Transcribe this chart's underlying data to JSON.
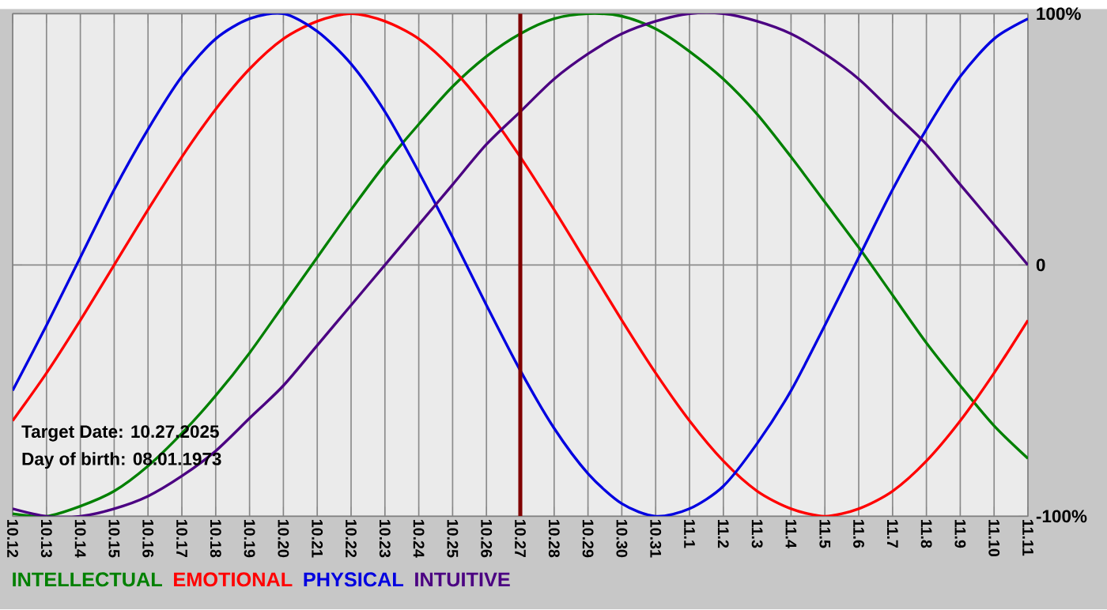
{
  "chart_data": {
    "type": "line",
    "categories": [
      "10.12",
      "10.13",
      "10.14",
      "10.15",
      "10.16",
      "10.17",
      "10.18",
      "10.19",
      "10.20",
      "10.21",
      "10.22",
      "10.23",
      "10.24",
      "10.25",
      "10.26",
      "10.27",
      "10.28",
      "10.29",
      "10.30",
      "10.31",
      "11.1",
      "11.2",
      "11.3",
      "11.4",
      "11.5",
      "11.6",
      "11.7",
      "11.8",
      "11.9",
      "11.10",
      "11.11"
    ],
    "series": [
      {
        "name": "INTELLECTUAL",
        "color": "#008000",
        "values": [
          -99,
          -100,
          -96,
          -90,
          -80,
          -67,
          -52,
          -35,
          -16,
          3,
          22,
          40,
          56,
          71,
          83,
          92,
          98,
          100,
          99,
          94,
          85,
          74,
          60,
          43,
          25,
          7,
          -12,
          -31,
          -48,
          -64,
          -77
        ]
      },
      {
        "name": "EMOTIONAL",
        "color": "#ff0000",
        "values": [
          -62,
          -43,
          -22,
          0,
          22,
          43,
          62,
          78,
          90,
          97,
          100,
          97,
          90,
          78,
          62,
          43,
          22,
          0,
          -22,
          -43,
          -62,
          -78,
          -90,
          -97,
          -100,
          -97,
          -90,
          -78,
          -62,
          -43,
          -22
        ]
      },
      {
        "name": "PHYSICAL",
        "color": "#0000e0",
        "values": [
          -50,
          -24,
          3,
          30,
          54,
          75,
          90,
          98,
          100,
          93,
          80,
          61,
          37,
          11,
          -16,
          -42,
          -65,
          -83,
          -95,
          -100,
          -97,
          -88,
          -71,
          -50,
          -24,
          3,
          30,
          54,
          75,
          90,
          98
        ]
      },
      {
        "name": "INTUITIVE",
        "color": "#4b0082",
        "values": [
          -97,
          -100,
          -100,
          -97,
          -92,
          -84,
          -74,
          -61,
          -48,
          -32,
          -16,
          0,
          16,
          32,
          48,
          61,
          74,
          84,
          92,
          97,
          100,
          100,
          97,
          92,
          84,
          74,
          61,
          48,
          32,
          16,
          0
        ]
      }
    ],
    "ylim": [
      -100,
      100
    ],
    "yticks": [
      {
        "value": -100,
        "label": "-100%"
      },
      0,
      {
        "value": 100,
        "label": "100%"
      }
    ],
    "grid": true,
    "legend": "bottom",
    "ref_lines": [
      {
        "axis": "x",
        "value": "10.27",
        "color": "#800000"
      }
    ],
    "annotations": [
      "Target Date: 10.27.2025",
      "Day of birth: 08.01.1973"
    ]
  }
}
